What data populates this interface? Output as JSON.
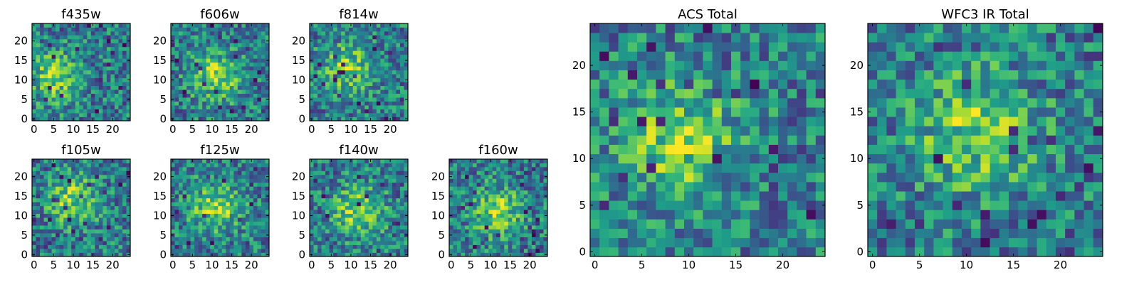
{
  "chart_data": [
    {
      "type": "heatmap",
      "title": "f435w",
      "x_ticks": [
        0,
        5,
        10,
        15,
        20
      ],
      "y_ticks": [
        0,
        5,
        10,
        15,
        20
      ],
      "xlim": [
        0,
        25
      ],
      "ylim": [
        0,
        25
      ],
      "grid_size": 25,
      "colormap": "viridis",
      "hotspot": {
        "x": 5,
        "y": 11
      }
    },
    {
      "type": "heatmap",
      "title": "f606w",
      "x_ticks": [
        0,
        5,
        10,
        15,
        20
      ],
      "y_ticks": [
        0,
        5,
        10,
        15,
        20
      ],
      "xlim": [
        0,
        25
      ],
      "ylim": [
        0,
        25
      ],
      "grid_size": 25,
      "colormap": "viridis",
      "hotspot": {
        "x": 11,
        "y": 11
      }
    },
    {
      "type": "heatmap",
      "title": "f814w",
      "x_ticks": [
        0,
        5,
        10,
        15,
        20
      ],
      "y_ticks": [
        0,
        5,
        10,
        15,
        20
      ],
      "xlim": [
        0,
        25
      ],
      "ylim": [
        0,
        25
      ],
      "grid_size": 25,
      "colormap": "viridis",
      "hotspot": {
        "x": 9,
        "y": 13
      }
    },
    {
      "type": "heatmap",
      "title": "f105w",
      "x_ticks": [
        0,
        5,
        10,
        15,
        20
      ],
      "y_ticks": [
        0,
        5,
        10,
        15,
        20
      ],
      "xlim": [
        0,
        25
      ],
      "ylim": [
        0,
        25
      ],
      "grid_size": 25,
      "colormap": "viridis",
      "hotspot": {
        "x": 10,
        "y": 14
      }
    },
    {
      "type": "heatmap",
      "title": "f125w",
      "x_ticks": [
        0,
        5,
        10,
        15,
        20
      ],
      "y_ticks": [
        0,
        5,
        10,
        15,
        20
      ],
      "xlim": [
        0,
        25
      ],
      "ylim": [
        0,
        25
      ],
      "grid_size": 25,
      "colormap": "viridis",
      "hotspot": {
        "x": 11,
        "y": 12
      }
    },
    {
      "type": "heatmap",
      "title": "f140w",
      "x_ticks": [
        0,
        5,
        10,
        15,
        20
      ],
      "y_ticks": [
        0,
        5,
        10,
        15,
        20
      ],
      "xlim": [
        0,
        25
      ],
      "ylim": [
        0,
        25
      ],
      "grid_size": 25,
      "colormap": "viridis",
      "hotspot": {
        "x": 12,
        "y": 11
      }
    },
    {
      "type": "heatmap",
      "title": "f160w",
      "x_ticks": [
        0,
        5,
        10,
        15,
        20
      ],
      "y_ticks": [
        0,
        5,
        10,
        15,
        20
      ],
      "xlim": [
        0,
        25
      ],
      "ylim": [
        0,
        25
      ],
      "grid_size": 25,
      "colormap": "viridis",
      "hotspot": {
        "x": 12,
        "y": 11
      }
    },
    {
      "type": "heatmap",
      "title": "ACS Total",
      "x_ticks": [
        0,
        5,
        10,
        15,
        20
      ],
      "y_ticks": [
        0,
        5,
        10,
        15,
        20
      ],
      "xlim": [
        0,
        25
      ],
      "ylim": [
        0,
        25
      ],
      "grid_size": 25,
      "colormap": "viridis",
      "hotspot": {
        "x": 9,
        "y": 12
      }
    },
    {
      "type": "heatmap",
      "title": "WFC3 IR Total",
      "x_ticks": [
        0,
        5,
        10,
        15,
        20
      ],
      "y_ticks": [
        0,
        5,
        10,
        15,
        20
      ],
      "xlim": [
        0,
        25
      ],
      "ylim": [
        0,
        25
      ],
      "grid_size": 25,
      "colormap": "viridis",
      "hotspot": {
        "x": 11,
        "y": 13
      }
    }
  ]
}
